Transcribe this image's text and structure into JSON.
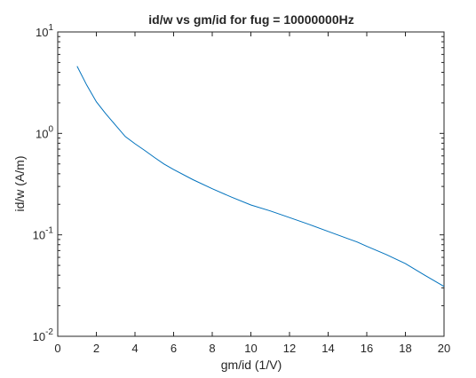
{
  "chart_data": {
    "type": "line",
    "title": "id/w vs gm/id for fug = 10000000Hz",
    "xlabel": "gm/id (1/V)",
    "ylabel": "id/w (A/m)",
    "xlim": [
      0,
      20
    ],
    "ylim": [
      0.01,
      10
    ],
    "yscale": "log",
    "grid": false,
    "line_color": "#0072bd",
    "x_ticks": [
      0,
      2,
      4,
      6,
      8,
      10,
      12,
      14,
      16,
      18,
      20
    ],
    "y_ticks": [
      {
        "value": 0.01,
        "base": "10",
        "exp": "-2"
      },
      {
        "value": 0.1,
        "base": "10",
        "exp": "-1"
      },
      {
        "value": 1,
        "base": "10",
        "exp": "0"
      },
      {
        "value": 10,
        "base": "10",
        "exp": "1"
      }
    ],
    "series": [
      {
        "x": [
          1.0,
          1.5,
          2.0,
          2.5,
          3.0,
          3.5,
          4.0,
          4.5,
          5.0,
          5.5,
          6.0,
          7.0,
          8.0,
          9.0,
          10.0,
          11.0,
          12.0,
          13.0,
          14.0,
          15.0,
          15.5,
          16.0,
          17.0,
          18.0,
          19.0,
          20.0
        ],
        "y": [
          4.6,
          3.0,
          2.05,
          1.55,
          1.2,
          0.93,
          0.79,
          0.68,
          0.58,
          0.5,
          0.44,
          0.35,
          0.285,
          0.235,
          0.197,
          0.172,
          0.148,
          0.127,
          0.108,
          0.092,
          0.085,
          0.077,
          0.064,
          0.052,
          0.04,
          0.031
        ]
      }
    ]
  }
}
